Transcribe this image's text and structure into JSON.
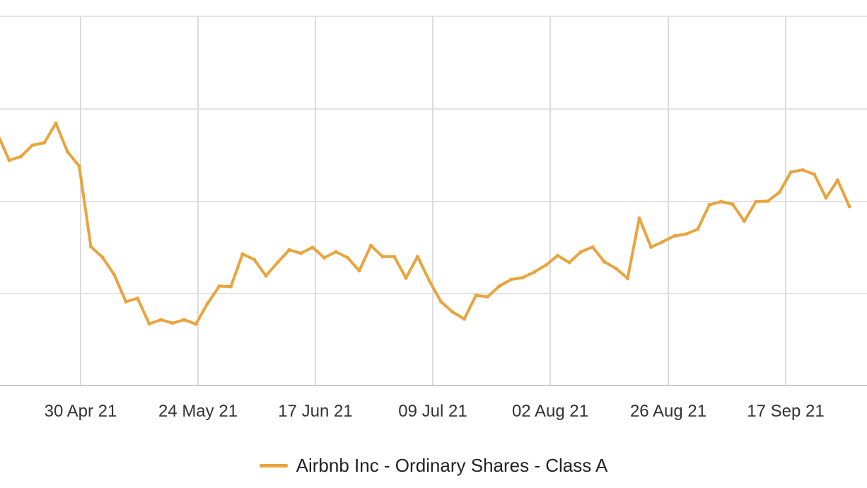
{
  "chart_data": {
    "type": "line",
    "x_tick_labels": [
      "30 Apr 21",
      "24 May 21",
      "17 Jun 21",
      "09 Jul 21",
      "02 Aug 21",
      "26 Aug 21",
      "17 Sep 21"
    ],
    "series": [
      {
        "name": "Airbnb Inc - Ordinary Shares - Class A",
        "color": "#e9a43d",
        "values": [
          0.665,
          0.681,
          0.61,
          0.62,
          0.651,
          0.657,
          0.71,
          0.633,
          0.594,
          0.376,
          0.347,
          0.3,
          0.227,
          0.236,
          0.167,
          0.178,
          0.169,
          0.178,
          0.166,
          0.222,
          0.269,
          0.268,
          0.356,
          0.341,
          0.297,
          0.333,
          0.367,
          0.358,
          0.374,
          0.346,
          0.362,
          0.346,
          0.311,
          0.379,
          0.349,
          0.349,
          0.291,
          0.349,
          0.284,
          0.227,
          0.199,
          0.18,
          0.244,
          0.24,
          0.269,
          0.287,
          0.292,
          0.307,
          0.326,
          0.352,
          0.333,
          0.362,
          0.375,
          0.335,
          0.317,
          0.29,
          0.453,
          0.375,
          0.389,
          0.405,
          0.41,
          0.423,
          0.489,
          0.498,
          0.491,
          0.445,
          0.498,
          0.499,
          0.523,
          0.578,
          0.584,
          0.572,
          0.508,
          0.556,
          0.485
        ]
      }
    ],
    "grid": true,
    "legend_position": "bottom-center"
  }
}
